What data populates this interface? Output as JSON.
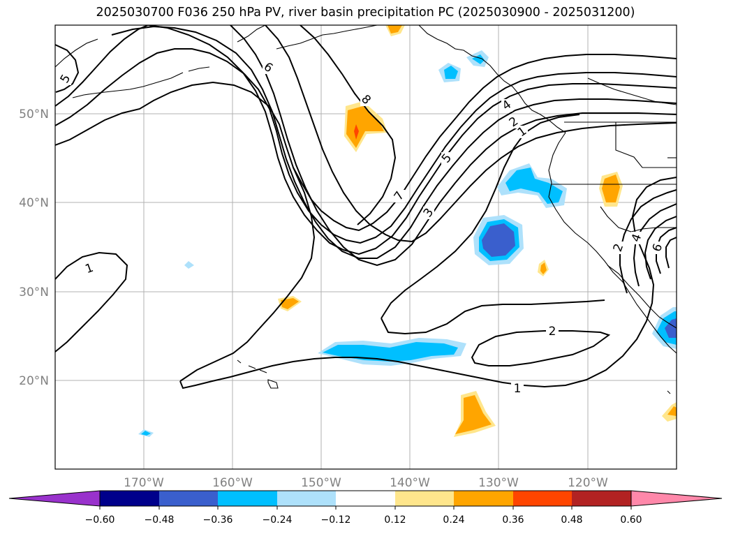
{
  "title": "2025030700 F036 250 hPa PV, river basin precipitation PC (2025030900 - 2025031200)",
  "map": {
    "lon_labels": [
      "170°W",
      "160°W",
      "150°W",
      "140°W",
      "130°W",
      "120°W"
    ],
    "lat_labels": [
      "50°N",
      "40°N",
      "30°N",
      "20°N"
    ],
    "contour_labels": [
      "5",
      "6",
      "8",
      "4",
      "2",
      "1",
      "5",
      "7",
      "3",
      "1",
      "2",
      "1",
      "2",
      "4",
      "6"
    ]
  },
  "colorbar": {
    "ticks": [
      "−0.60",
      "−0.48",
      "−0.36",
      "−0.24",
      "−0.12",
      "0.12",
      "0.24",
      "0.36",
      "0.48",
      "0.60"
    ],
    "colors": [
      "#9932cc",
      "#00008b",
      "#3a5fcd",
      "#00bfff",
      "#aee1fb",
      "#ffffff",
      "#ffe68c",
      "#ffa500",
      "#ff4500",
      "#b22222",
      "#ff88aa"
    ]
  }
}
